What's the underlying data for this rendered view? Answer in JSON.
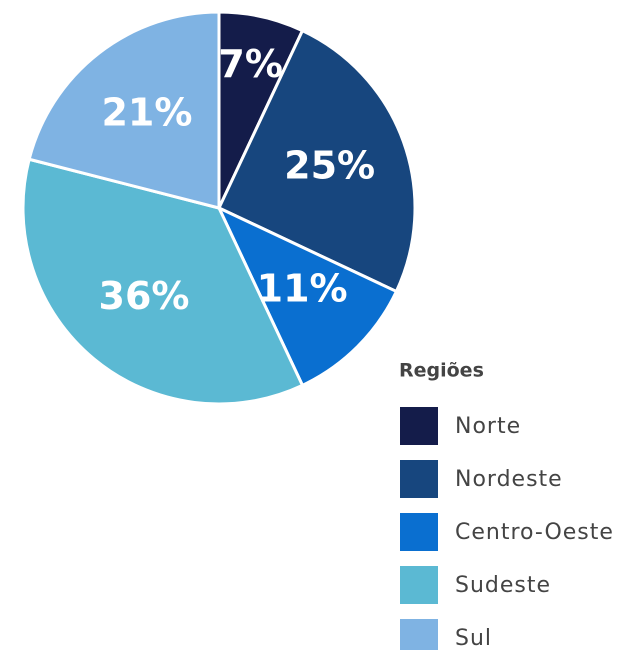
{
  "chart_data": {
    "type": "pie",
    "legend_title": "Regiões",
    "categories": [
      "Norte",
      "Nordeste",
      "Centro-Oeste",
      "Sudeste",
      "Sul"
    ],
    "values": [
      7,
      25,
      11,
      36,
      21
    ],
    "value_labels": [
      "7%",
      "25%",
      "11%",
      "36%",
      "21%"
    ],
    "colors": [
      "#141c4a",
      "#17467e",
      "#0a6fd0",
      "#5bb9d3",
      "#7fb3e3"
    ],
    "legend": "bottom-right"
  }
}
